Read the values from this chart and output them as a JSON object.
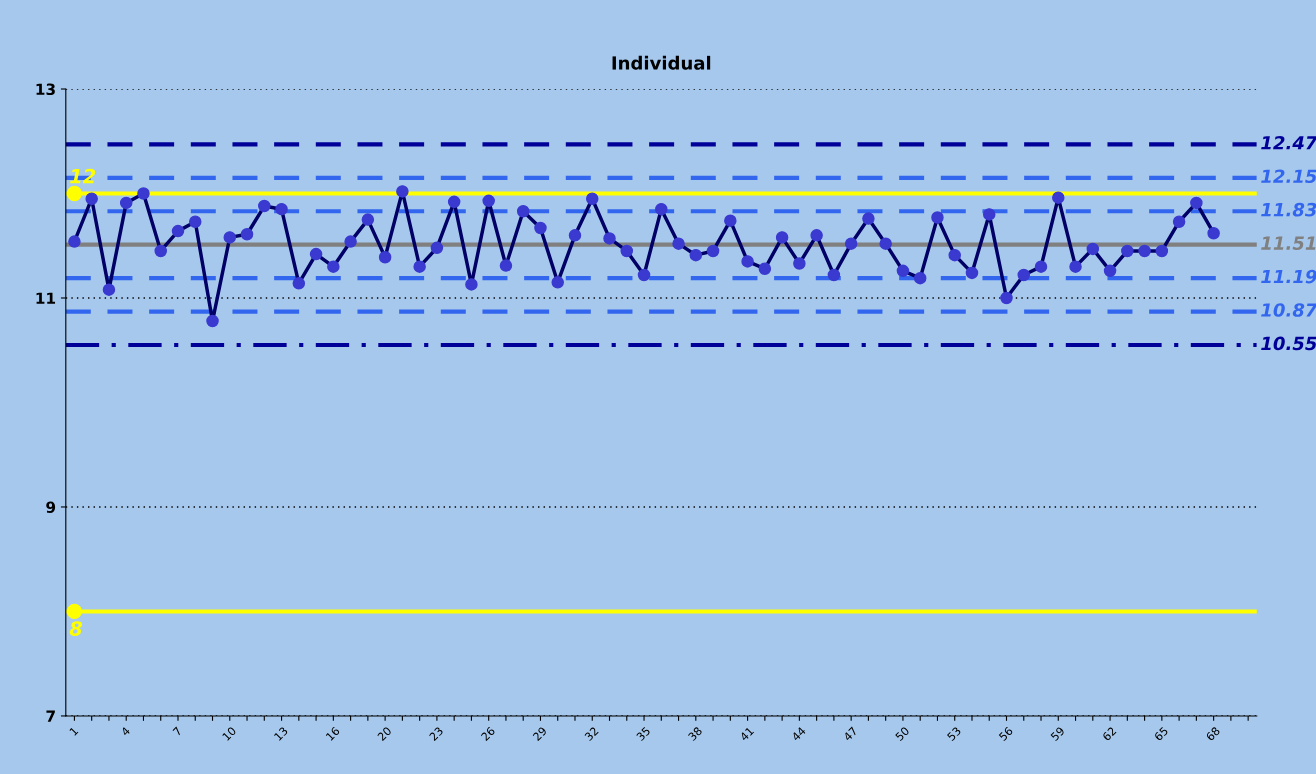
{
  "chart_data": {
    "type": "line",
    "title": "Individual",
    "categories": [
      "1",
      null,
      null,
      "4",
      null,
      null,
      "7",
      null,
      null,
      "10",
      null,
      null,
      "13",
      null,
      null,
      "16",
      null,
      null,
      "20",
      null,
      null,
      "23",
      null,
      null,
      "26",
      null,
      null,
      "29",
      null,
      null,
      "32",
      null,
      null,
      "35",
      null,
      null,
      "38",
      null,
      null,
      "41",
      null,
      null,
      "44",
      null,
      null,
      "47",
      null,
      null,
      "50",
      null,
      null,
      "53",
      null,
      null,
      "56",
      null,
      null,
      "59",
      null,
      null,
      "62",
      null,
      null,
      "65",
      null,
      null,
      "68",
      null,
      null
    ],
    "series": [
      {
        "color": "#3a3ad0",
        "values": [
          11.54,
          11.95,
          11.08,
          11.91,
          12.0,
          11.45,
          11.64,
          11.73,
          10.78,
          11.58,
          11.61,
          11.88,
          11.85,
          11.14,
          11.42,
          11.3,
          11.54,
          11.75,
          11.39,
          12.02,
          11.3,
          11.48,
          11.92,
          11.13,
          11.93,
          11.31,
          11.83,
          11.67,
          11.15,
          11.6,
          11.95,
          11.57,
          11.45,
          11.22,
          11.85,
          11.52,
          11.41,
          11.45,
          11.74,
          11.35,
          11.28,
          11.58,
          11.33,
          11.6,
          11.22,
          11.52,
          11.76,
          11.52,
          11.26,
          11.19,
          11.77,
          11.41,
          11.24,
          11.8,
          11.0,
          11.22,
          11.3,
          11.96,
          11.3,
          11.47,
          11.26,
          11.45,
          11.45,
          11.45,
          11.73,
          11.91,
          11.62,
          null,
          null
        ]
      }
    ],
    "ylim": [
      7,
      13
    ],
    "yticks": [
      7,
      9,
      11,
      13
    ],
    "grid": "y",
    "marker": "circle",
    "line_style": "solid",
    "ref_lines": [
      {
        "axis": "y",
        "value": 12.47,
        "label": "12.47",
        "color": "#000099",
        "line_style": "dashed"
      },
      {
        "axis": "y",
        "value": 12.15,
        "label": "12.15",
        "color": "#3366ee",
        "line_style": "dashed"
      },
      {
        "axis": "y",
        "value": 11.83,
        "label": "11.83",
        "color": "#3366ee",
        "line_style": "dashed"
      },
      {
        "axis": "y",
        "value": 11.51,
        "label": "11.51",
        "color": "#808080",
        "line_style": "solid"
      },
      {
        "axis": "y",
        "value": 11.19,
        "label": "11.19",
        "color": "#3366ee",
        "line_style": "dashed"
      },
      {
        "axis": "y",
        "value": 10.87,
        "label": "10.87",
        "color": "#3366ee",
        "line_style": "dashed"
      },
      {
        "axis": "y",
        "value": 10.55,
        "label": "10.55",
        "color": "#000099",
        "line_style": "dashdot"
      },
      {
        "axis": "y",
        "value": 12,
        "label": "12",
        "color": "#ffff00",
        "line_style": "solid"
      },
      {
        "axis": "y",
        "value": 8,
        "label": "8",
        "color": "#ffff00",
        "line_style": "solid"
      }
    ]
  }
}
